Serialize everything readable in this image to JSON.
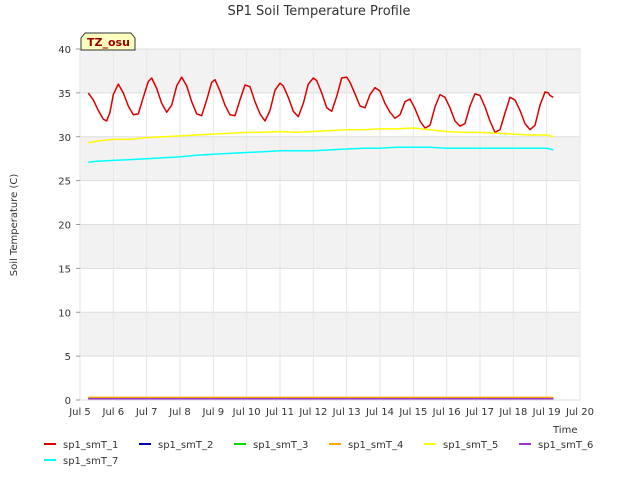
{
  "chart_data": {
    "type": "line",
    "title": "SP1 Soil Temperature Profile",
    "xlabel": "Time",
    "ylabel": "Soil Temperature (C)",
    "badge": "TZ_osu",
    "ylim": [
      0,
      40
    ],
    "xlim": [
      5,
      20
    ],
    "y_ticks": [
      0,
      5,
      10,
      15,
      20,
      25,
      30,
      35,
      40
    ],
    "x_ticks": [
      {
        "v": 5,
        "label": "Jul 5"
      },
      {
        "v": 6,
        "label": "Jul 6"
      },
      {
        "v": 7,
        "label": "Jul 7"
      },
      {
        "v": 8,
        "label": "Jul 8"
      },
      {
        "v": 9,
        "label": "Jul 9"
      },
      {
        "v": 10,
        "label": "Jul 10"
      },
      {
        "v": 11,
        "label": "Jul 11"
      },
      {
        "v": 12,
        "label": "Jul 12"
      },
      {
        "v": 13,
        "label": "Jul 13"
      },
      {
        "v": 14,
        "label": "Jul 14"
      },
      {
        "v": 15,
        "label": "Jul 15"
      },
      {
        "v": 16,
        "label": "Jul 16"
      },
      {
        "v": 17,
        "label": "Jul 17"
      },
      {
        "v": 18,
        "label": "Jul 18"
      },
      {
        "v": 19,
        "label": "Jul 19"
      },
      {
        "v": 20,
        "label": "Jul 20"
      }
    ],
    "grid": true,
    "legend_position": "bottom",
    "series": [
      {
        "name": "sp1_smT_1",
        "color": "#dd0000",
        "x": [
          5.25,
          5.4,
          5.55,
          5.7,
          5.8,
          5.9,
          6.0,
          6.15,
          6.3,
          6.45,
          6.6,
          6.75,
          6.9,
          7.05,
          7.15,
          7.3,
          7.45,
          7.6,
          7.75,
          7.9,
          8.05,
          8.2,
          8.35,
          8.5,
          8.65,
          8.8,
          8.95,
          9.05,
          9.2,
          9.35,
          9.5,
          9.65,
          9.8,
          9.95,
          10.1,
          10.25,
          10.4,
          10.55,
          10.7,
          10.85,
          11.0,
          11.1,
          11.25,
          11.4,
          11.55,
          11.7,
          11.85,
          12.0,
          12.1,
          12.25,
          12.4,
          12.55,
          12.7,
          12.85,
          13.0,
          13.1,
          13.25,
          13.4,
          13.55,
          13.7,
          13.85,
          14.0,
          14.15,
          14.3,
          14.45,
          14.6,
          14.75,
          14.9,
          15.05,
          15.2,
          15.35,
          15.5,
          15.65,
          15.8,
          15.95,
          16.1,
          16.25,
          16.4,
          16.55,
          16.7,
          16.85,
          17.0,
          17.15,
          17.3,
          17.45,
          17.6,
          17.75,
          17.9,
          18.05,
          18.2,
          18.35,
          18.5,
          18.65,
          18.8,
          18.95,
          19.05,
          19.1,
          19.2
        ],
        "y": [
          35.0,
          34.2,
          33.0,
          32.0,
          31.8,
          32.8,
          34.8,
          36.0,
          35.0,
          33.5,
          32.5,
          32.6,
          34.5,
          36.3,
          36.7,
          35.5,
          33.8,
          32.8,
          33.6,
          35.8,
          36.8,
          35.8,
          34.0,
          32.6,
          32.4,
          34.2,
          36.2,
          36.5,
          35.2,
          33.6,
          32.5,
          32.4,
          34.2,
          35.9,
          35.7,
          34.0,
          32.6,
          31.8,
          33.0,
          35.3,
          36.1,
          35.8,
          34.5,
          32.9,
          32.3,
          33.8,
          36.0,
          36.7,
          36.4,
          35.0,
          33.3,
          32.9,
          34.6,
          36.7,
          36.8,
          36.2,
          34.9,
          33.5,
          33.3,
          34.8,
          35.6,
          35.2,
          33.8,
          32.8,
          32.1,
          32.5,
          34.0,
          34.3,
          33.2,
          31.8,
          31.0,
          31.3,
          33.4,
          34.8,
          34.5,
          33.3,
          31.8,
          31.2,
          31.5,
          33.5,
          34.9,
          34.7,
          33.4,
          31.8,
          30.5,
          30.8,
          32.7,
          34.5,
          34.2,
          33.0,
          31.5,
          30.8,
          31.3,
          33.6,
          35.1,
          35.0,
          34.7,
          34.5
        ]
      },
      {
        "name": "sp1_smT_2",
        "color": "#0000bb",
        "x": [
          5.25,
          19.2
        ],
        "y": [
          0.2,
          0.2
        ]
      },
      {
        "name": "sp1_smT_3",
        "color": "#00dd00",
        "x": [
          5.25,
          19.2
        ],
        "y": [
          0.25,
          0.25
        ]
      },
      {
        "name": "sp1_smT_4",
        "color": "#ffa500",
        "x": [
          5.25,
          19.2
        ],
        "y": [
          0.3,
          0.3
        ]
      },
      {
        "name": "sp1_smT_5",
        "color": "#ffff00",
        "x": [
          5.25,
          5.5,
          6.0,
          6.5,
          7.0,
          7.5,
          8.0,
          8.5,
          9.0,
          9.5,
          10.0,
          10.5,
          11.0,
          11.5,
          12.0,
          12.5,
          13.0,
          13.5,
          14.0,
          14.5,
          15.0,
          15.5,
          16.0,
          16.5,
          17.0,
          17.5,
          18.0,
          18.5,
          19.0,
          19.2
        ],
        "y": [
          29.3,
          29.5,
          29.7,
          29.7,
          29.9,
          30.0,
          30.1,
          30.2,
          30.3,
          30.4,
          30.5,
          30.5,
          30.6,
          30.5,
          30.6,
          30.7,
          30.8,
          30.8,
          30.9,
          30.9,
          31.0,
          30.8,
          30.6,
          30.5,
          30.5,
          30.4,
          30.3,
          30.2,
          30.2,
          30.0
        ]
      },
      {
        "name": "sp1_smT_6",
        "color": "#9932cc",
        "x": [
          5.25,
          19.2
        ],
        "y": [
          0.15,
          0.15
        ]
      },
      {
        "name": "sp1_smT_7",
        "color": "#00ffff",
        "x": [
          5.25,
          5.5,
          6.0,
          6.5,
          7.0,
          7.5,
          8.0,
          8.5,
          9.0,
          9.5,
          10.0,
          10.5,
          11.0,
          11.5,
          12.0,
          12.5,
          13.0,
          13.5,
          14.0,
          14.5,
          15.0,
          15.5,
          16.0,
          16.5,
          17.0,
          17.5,
          18.0,
          18.5,
          19.0,
          19.2
        ],
        "y": [
          27.1,
          27.2,
          27.3,
          27.4,
          27.5,
          27.6,
          27.7,
          27.9,
          28.0,
          28.1,
          28.2,
          28.3,
          28.4,
          28.4,
          28.4,
          28.5,
          28.6,
          28.7,
          28.7,
          28.8,
          28.8,
          28.8,
          28.7,
          28.7,
          28.7,
          28.7,
          28.7,
          28.7,
          28.7,
          28.5
        ]
      }
    ]
  }
}
